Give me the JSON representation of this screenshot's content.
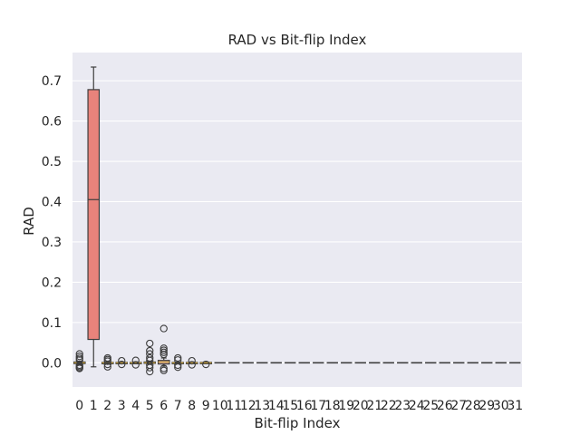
{
  "chart_data": {
    "type": "box",
    "title": "RAD vs Bit-flip Index",
    "xlabel": "Bit-flip Index",
    "ylabel": "RAD",
    "ylim": [
      -0.06,
      0.77
    ],
    "yticks": [
      0.0,
      0.1,
      0.2,
      0.3,
      0.4,
      0.5,
      0.6,
      0.7
    ],
    "ytick_labels": [
      "0.0",
      "0.1",
      "0.2",
      "0.3",
      "0.4",
      "0.5",
      "0.6",
      "0.7"
    ],
    "categories": [
      "0",
      "1",
      "2",
      "3",
      "4",
      "5",
      "6",
      "7",
      "8",
      "9",
      "10",
      "11",
      "12",
      "13",
      "14",
      "15",
      "16",
      "17",
      "18",
      "19",
      "20",
      "21",
      "22",
      "23",
      "24",
      "25",
      "26",
      "27",
      "28",
      "29",
      "30",
      "31"
    ],
    "grid": true,
    "colors": {
      "background": "#eaeaf2",
      "grid": "#ffffff",
      "box_highlight": "#e8837b",
      "box_default": "#d6a69f",
      "line": "#3d3d3d",
      "median_small": "#c9a23a",
      "text": "#262626"
    },
    "boxes": [
      {
        "index": 0,
        "q1": -0.002,
        "median": 0.0,
        "q3": 0.002,
        "whisker_low": -0.004,
        "whisker_high": 0.004,
        "outliers": [
          0.022,
          0.016,
          0.011,
          0.007,
          -0.006,
          -0.009,
          -0.012,
          -0.014
        ]
      },
      {
        "index": 1,
        "q1": 0.058,
        "median": 0.405,
        "q3": 0.678,
        "whisker_low": -0.01,
        "whisker_high": 0.734,
        "outliers": [],
        "highlight": true
      },
      {
        "index": 2,
        "q1": -0.001,
        "median": 0.0,
        "q3": 0.001,
        "whisker_low": -0.002,
        "whisker_high": 0.002,
        "outliers": [
          0.012,
          0.008,
          0.004,
          -0.004,
          -0.01
        ]
      },
      {
        "index": 3,
        "q1": -0.001,
        "median": 0.0,
        "q3": 0.001,
        "whisker_low": -0.002,
        "whisker_high": 0.002,
        "outliers": [
          0.005,
          -0.004
        ]
      },
      {
        "index": 4,
        "q1": -0.001,
        "median": 0.0,
        "q3": 0.001,
        "whisker_low": -0.002,
        "whisker_high": 0.002,
        "outliers": [
          0.006,
          -0.005
        ]
      },
      {
        "index": 5,
        "q1": -0.001,
        "median": 0.0,
        "q3": 0.002,
        "whisker_low": -0.003,
        "whisker_high": 0.004,
        "outliers": [
          0.048,
          0.03,
          0.022,
          0.012,
          0.006,
          -0.006,
          -0.012,
          -0.022
        ]
      },
      {
        "index": 6,
        "q1": -0.003,
        "median": 0.002,
        "q3": 0.006,
        "whisker_low": -0.008,
        "whisker_high": 0.012,
        "outliers": [
          0.085,
          0.036,
          0.031,
          0.026,
          0.021,
          -0.014,
          -0.019
        ]
      },
      {
        "index": 7,
        "q1": -0.001,
        "median": 0.0,
        "q3": 0.001,
        "whisker_low": -0.002,
        "whisker_high": 0.002,
        "outliers": [
          0.012,
          0.007,
          -0.006,
          -0.011
        ]
      },
      {
        "index": 8,
        "q1": -0.001,
        "median": 0.0,
        "q3": 0.001,
        "whisker_low": -0.002,
        "whisker_high": 0.002,
        "outliers": [
          0.005,
          -0.005
        ]
      },
      {
        "index": 9,
        "q1": -0.001,
        "median": 0.0,
        "q3": 0.001,
        "whisker_low": -0.002,
        "whisker_high": 0.002,
        "outliers": [
          -0.004
        ]
      }
    ],
    "flat_indices_value": 0.0
  }
}
